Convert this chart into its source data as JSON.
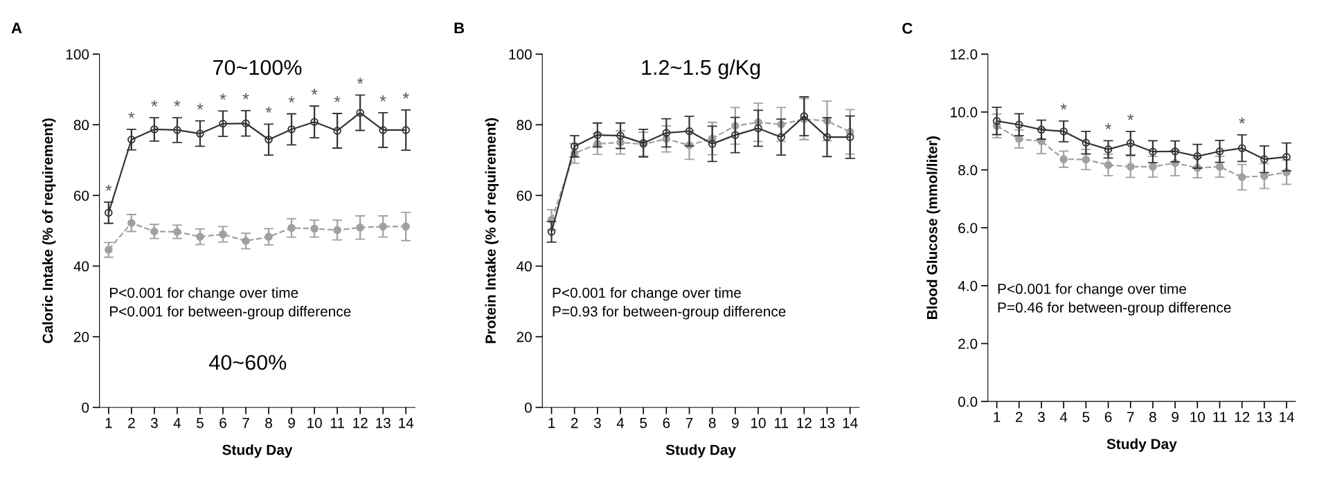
{
  "chart_data": [
    {
      "type": "line",
      "title": "A",
      "xlabel": "Study Day",
      "ylabel": "Caloric Intake (% of requirement)",
      "x": [
        1,
        2,
        3,
        4,
        5,
        6,
        7,
        8,
        9,
        10,
        11,
        12,
        13,
        14
      ],
      "series": [
        {
          "color": "#333333",
          "marker": "circle",
          "line_style": "solid",
          "values": [
            55.1,
            75.8,
            78.7,
            78.5,
            77.5,
            80.3,
            80.4,
            75.8,
            78.7,
            80.8,
            78.3,
            83.4,
            78.5,
            78.5
          ],
          "errors": [
            3,
            2.9,
            3.3,
            3.5,
            3.6,
            3.6,
            3.6,
            4.4,
            4.4,
            4.5,
            4.9,
            5,
            4.9,
            5.7
          ]
        },
        {
          "color": "#a0a0a0",
          "marker": "circle",
          "line_style": "dashed",
          "values": [
            44.6,
            52.2,
            49.8,
            49.7,
            48.3,
            49,
            47.1,
            48.3,
            50.8,
            50.6,
            50.2,
            50.9,
            51.2,
            51.2
          ],
          "errors": [
            2.1,
            2.4,
            2,
            1.9,
            2.2,
            2.2,
            2.2,
            2.3,
            2.6,
            2.4,
            2.8,
            3.3,
            3,
            4
          ]
        }
      ],
      "xlim": [
        0.6,
        14.4
      ],
      "xticks": [
        1,
        2,
        3,
        4,
        5,
        6,
        7,
        8,
        9,
        10,
        11,
        12,
        13,
        14
      ],
      "ylim": [
        0,
        100
      ],
      "yticks": [
        0,
        20,
        40,
        60,
        80,
        100
      ],
      "annotations": [
        "70~100%",
        "P<0.001 for change over time\nP<0.001 for between-group difference",
        "40~60%",
        {
          "text": "*",
          "x": 1,
          "y": 58.1
        },
        {
          "text": "*",
          "x": 2,
          "y": 78.7
        },
        {
          "text": "*",
          "x": 3,
          "y": 82
        },
        {
          "text": "*",
          "x": 4,
          "y": 82
        },
        {
          "text": "*",
          "x": 5,
          "y": 81.1
        },
        {
          "text": "*",
          "x": 6,
          "y": 83.9
        },
        {
          "text": "*",
          "x": 7,
          "y": 84
        },
        {
          "text": "*",
          "x": 8,
          "y": 80.2
        },
        {
          "text": "*",
          "x": 9,
          "y": 83.1
        },
        {
          "text": "*",
          "x": 10,
          "y": 85.3
        },
        {
          "text": "*",
          "x": 11,
          "y": 83.2
        },
        {
          "text": "*",
          "x": 12,
          "y": 88.4
        },
        {
          "text": "*",
          "x": 13,
          "y": 83.4
        },
        {
          "text": "*",
          "x": 14,
          "y": 84.2
        }
      ]
    },
    {
      "type": "line",
      "title": "B",
      "xlabel": "Study Day",
      "ylabel": "Protein Intake (% of requirement)",
      "x": [
        1,
        2,
        3,
        4,
        5,
        6,
        7,
        8,
        9,
        10,
        11,
        12,
        13,
        14
      ],
      "series": [
        {
          "color": "#a0a0a0",
          "marker": "circle",
          "line_style": "dashed",
          "values": [
            53.1,
            71.9,
            74.6,
            75,
            74.5,
            76,
            74.2,
            76.1,
            79.7,
            80.7,
            80.1,
            81.6,
            81.1,
            78
          ],
          "errors": [
            2.9,
            2.8,
            3,
            3.3,
            3.4,
            3.7,
            4,
            4.6,
            5.2,
            5.4,
            4.8,
            5.8,
            5.6,
            6.3
          ]
        },
        {
          "color": "#333333",
          "marker": "circle",
          "line_style": "solid",
          "values": [
            49.7,
            73.9,
            77.1,
            76.9,
            74.8,
            77.7,
            78.2,
            74.6,
            77.1,
            79,
            76.5,
            82.4,
            76.5,
            76.5
          ],
          "errors": [
            2.9,
            3,
            3.4,
            3.6,
            3.9,
            4,
            4.2,
            5,
            5,
            5.1,
            5.1,
            5.5,
            5.5,
            6
          ]
        }
      ],
      "xlim": [
        0.6,
        14.4
      ],
      "xticks": [
        1,
        2,
        3,
        4,
        5,
        6,
        7,
        8,
        9,
        10,
        11,
        12,
        13,
        14
      ],
      "ylim": [
        0,
        100
      ],
      "yticks": [
        0,
        20,
        40,
        60,
        80,
        100
      ],
      "annotations": [
        "1.2~1.5 g/Kg",
        "P<0.001 for change over time\nP=0.93 for between-group difference"
      ]
    },
    {
      "type": "line",
      "title": "C",
      "xlabel": "Study Day",
      "ylabel": "Blood Glucose (mmol/liter)",
      "x": [
        1,
        2,
        3,
        4,
        5,
        6,
        7,
        8,
        9,
        10,
        11,
        12,
        13,
        14
      ],
      "series": [
        {
          "color": "#a0a0a0",
          "marker": "circle",
          "line_style": "dashed",
          "values": [
            9.52,
            9.07,
            8.99,
            8.37,
            8.36,
            8.17,
            8.11,
            8.11,
            8.24,
            8.07,
            8.11,
            7.75,
            7.79,
            7.92
          ],
          "errors": [
            0.41,
            0.31,
            0.43,
            0.28,
            0.35,
            0.37,
            0.37,
            0.36,
            0.44,
            0.34,
            0.36,
            0.44,
            0.43,
            0.42
          ]
        },
        {
          "color": "#333333",
          "marker": "circle",
          "line_style": "solid",
          "values": [
            9.69,
            9.56,
            9.39,
            9.33,
            8.94,
            8.71,
            8.92,
            8.63,
            8.64,
            8.47,
            8.64,
            8.75,
            8.37,
            8.45
          ],
          "errors": [
            0.47,
            0.38,
            0.33,
            0.36,
            0.39,
            0.3,
            0.41,
            0.38,
            0.36,
            0.41,
            0.38,
            0.46,
            0.46,
            0.48
          ]
        }
      ],
      "xlim": [
        0.6,
        14.4
      ],
      "xticks": [
        1,
        2,
        3,
        4,
        5,
        6,
        7,
        8,
        9,
        10,
        11,
        12,
        13,
        14
      ],
      "ylim": [
        0,
        12
      ],
      "yticks": [
        {
          "value": 0,
          "label": "0.0"
        },
        {
          "value": 2,
          "label": "2.0"
        },
        {
          "value": 4,
          "label": "4.0"
        },
        {
          "value": 6,
          "label": "6.0"
        },
        {
          "value": 8,
          "label": "8.0"
        },
        {
          "value": 10,
          "label": "10.0"
        },
        {
          "value": 12,
          "label": "12.0"
        }
      ],
      "annotations": [
        "P<0.001 for change over time\nP=0.46 for between-group difference",
        {
          "text": "*",
          "x": 4,
          "y": 9.69
        },
        {
          "text": "*",
          "x": 6,
          "y": 9.01
        },
        {
          "text": "*",
          "x": 7,
          "y": 9.33
        },
        {
          "text": "*",
          "x": 12,
          "y": 9.21
        }
      ]
    }
  ]
}
